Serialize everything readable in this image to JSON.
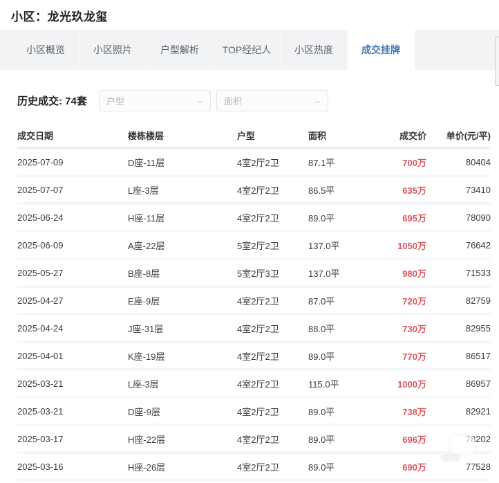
{
  "page": {
    "title": "小区：龙光玖龙玺"
  },
  "tabs": [
    {
      "label": "小区概览",
      "active": false
    },
    {
      "label": "小区照片",
      "active": false
    },
    {
      "label": "户型解析",
      "active": false
    },
    {
      "label": "TOP经纪人",
      "active": false
    },
    {
      "label": "小区热度",
      "active": false
    },
    {
      "label": "成交挂牌",
      "active": true
    }
  ],
  "filter": {
    "label": "历史成交: 74套",
    "dropdowns": [
      {
        "placeholder": "户型",
        "chevron": "⌄"
      },
      {
        "placeholder": "面积",
        "chevron": "⌄"
      }
    ]
  },
  "table": {
    "columns": [
      "成交日期",
      "楼栋楼层",
      "户型",
      "面积",
      "成交价",
      "单价(元/平)"
    ],
    "rows": [
      {
        "date": "2025-07-09",
        "building": "D座-11层",
        "layout": "4室2厅2卫",
        "area": "87.1平",
        "price": "700万",
        "unit_price": "80404"
      },
      {
        "date": "2025-07-07",
        "building": "L座-3层",
        "layout": "4室2厅2卫",
        "area": "86.5平",
        "price": "635万",
        "unit_price": "73410"
      },
      {
        "date": "2025-06-24",
        "building": "H座-11层",
        "layout": "4室2厅2卫",
        "area": "89.0平",
        "price": "695万",
        "unit_price": "78090"
      },
      {
        "date": "2025-06-09",
        "building": "A座-22层",
        "layout": "5室2厅2卫",
        "area": "137.0平",
        "price": "1050万",
        "unit_price": "76642"
      },
      {
        "date": "2025-05-27",
        "building": "B座-8层",
        "layout": "5室2厅3卫",
        "area": "137.0平",
        "price": "980万",
        "unit_price": "71533"
      },
      {
        "date": "2025-04-27",
        "building": "E座-9层",
        "layout": "4室2厅2卫",
        "area": "87.0平",
        "price": "720万",
        "unit_price": "82759"
      },
      {
        "date": "2025-04-24",
        "building": "J座-31层",
        "layout": "4室2厅2卫",
        "area": "88.0平",
        "price": "730万",
        "unit_price": "82955"
      },
      {
        "date": "2025-04-01",
        "building": "K座-19层",
        "layout": "4室2厅2卫",
        "area": "89.0平",
        "price": "770万",
        "unit_price": "86517"
      },
      {
        "date": "2025-03-21",
        "building": "L座-3层",
        "layout": "4室2厅2卫",
        "area": "115.0平",
        "price": "1000万",
        "unit_price": "86957"
      },
      {
        "date": "2025-03-21",
        "building": "D座-9层",
        "layout": "4室2厅2卫",
        "area": "89.0平",
        "price": "738万",
        "unit_price": "82921"
      },
      {
        "date": "2025-03-17",
        "building": "H座-22层",
        "layout": "4室2厅2卫",
        "area": "89.0平",
        "price": "696万",
        "unit_price": "78202"
      },
      {
        "date": "2025-03-16",
        "building": "H座-26层",
        "layout": "4室2厅2卫",
        "area": "89.0平",
        "price": "690万",
        "unit_price": "77528"
      }
    ]
  },
  "colors": {
    "accent_blue": "#4679b7",
    "price_red": "#d9575c",
    "tabbar_bg": "#f1f3f5"
  }
}
